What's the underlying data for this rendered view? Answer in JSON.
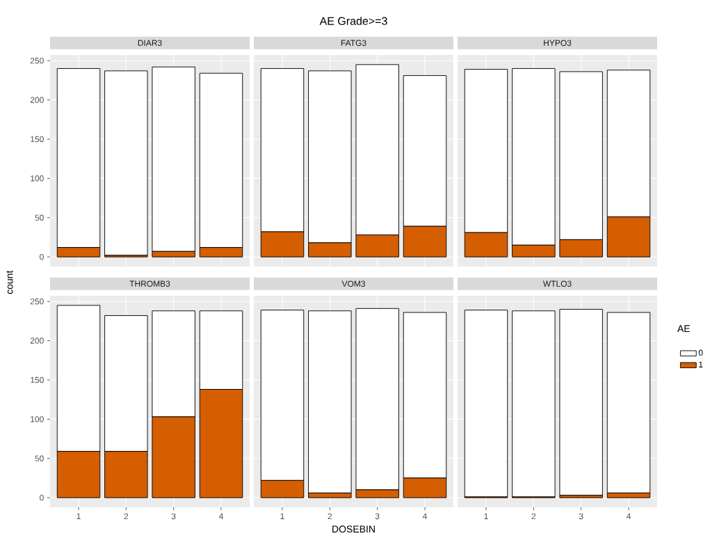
{
  "chart_data": [
    {
      "type": "bar",
      "stacked": true,
      "subtitle": "DIAR3",
      "ylabel": "count",
      "categories": [
        "1",
        "2",
        "3",
        "4"
      ],
      "ylim": [
        -12.25,
        257.25
      ],
      "yticks": [
        0,
        50,
        100,
        150,
        200,
        250
      ],
      "grid": true,
      "tick_labels": "y",
      "series": [
        {
          "color": "#d55e00",
          "values": [
            12,
            2,
            7,
            12
          ]
        },
        {
          "color": "#ffffff",
          "values": [
            228,
            235,
            235,
            222
          ]
        }
      ]
    },
    {
      "type": "bar",
      "stacked": true,
      "title": "AE Grade>=3",
      "subtitle": "FATG3",
      "categories": [
        "1",
        "2",
        "3",
        "4"
      ],
      "ylim": [
        -12.25,
        257.25
      ],
      "yticks": [
        0,
        50,
        100,
        150,
        200,
        250
      ],
      "grid": true,
      "tick_labels": false,
      "series": [
        {
          "color": "#d55e00",
          "values": [
            32,
            18,
            28,
            39
          ]
        },
        {
          "color": "#ffffff",
          "values": [
            208,
            219,
            217,
            192
          ]
        }
      ]
    },
    {
      "type": "bar",
      "stacked": true,
      "subtitle": "HYPO3",
      "categories": [
        "1",
        "2",
        "3",
        "4"
      ],
      "ylim": [
        -12.25,
        257.25
      ],
      "yticks": [
        0,
        50,
        100,
        150,
        200,
        250
      ],
      "grid": true,
      "tick_labels": false,
      "legend": "right",
      "legend_title": "AE",
      "series": [
        {
          "name": "1",
          "color": "#d55e00",
          "values": [
            31,
            15,
            22,
            51
          ]
        },
        {
          "name": "0",
          "color": "#ffffff",
          "values": [
            208,
            225,
            214,
            187
          ]
        }
      ]
    },
    {
      "type": "bar",
      "stacked": true,
      "subtitle": "THROMB3",
      "categories": [
        "1",
        "2",
        "3",
        "4"
      ],
      "ylim": [
        -12.25,
        257.25
      ],
      "yticks": [
        0,
        50,
        100,
        150,
        200,
        250
      ],
      "grid": true,
      "series": [
        {
          "color": "#d55e00",
          "values": [
            59,
            59,
            103,
            138
          ]
        },
        {
          "color": "#ffffff",
          "values": [
            186,
            173,
            135,
            100
          ]
        }
      ]
    },
    {
      "type": "bar",
      "stacked": true,
      "subtitle": "VOM3",
      "xlabel": "DOSEBIN",
      "categories": [
        "1",
        "2",
        "3",
        "4"
      ],
      "ylim": [
        -12.25,
        257.25
      ],
      "yticks": [
        0,
        50,
        100,
        150,
        200,
        250
      ],
      "grid": true,
      "tick_labels": "x",
      "series": [
        {
          "color": "#d55e00",
          "values": [
            22,
            6,
            10,
            25
          ]
        },
        {
          "color": "#ffffff",
          "values": [
            217,
            232,
            231,
            211
          ]
        }
      ]
    },
    {
      "type": "bar",
      "stacked": true,
      "subtitle": "WTLO3",
      "categories": [
        "1",
        "2",
        "3",
        "4"
      ],
      "ylim": [
        -12.25,
        257.25
      ],
      "yticks": [
        0,
        50,
        100,
        150,
        200,
        250
      ],
      "grid": true,
      "tick_labels": "x",
      "series": [
        {
          "color": "#d55e00",
          "values": [
            1,
            1,
            3,
            6
          ]
        },
        {
          "color": "#ffffff",
          "values": [
            238,
            237,
            237,
            230
          ]
        }
      ]
    }
  ]
}
